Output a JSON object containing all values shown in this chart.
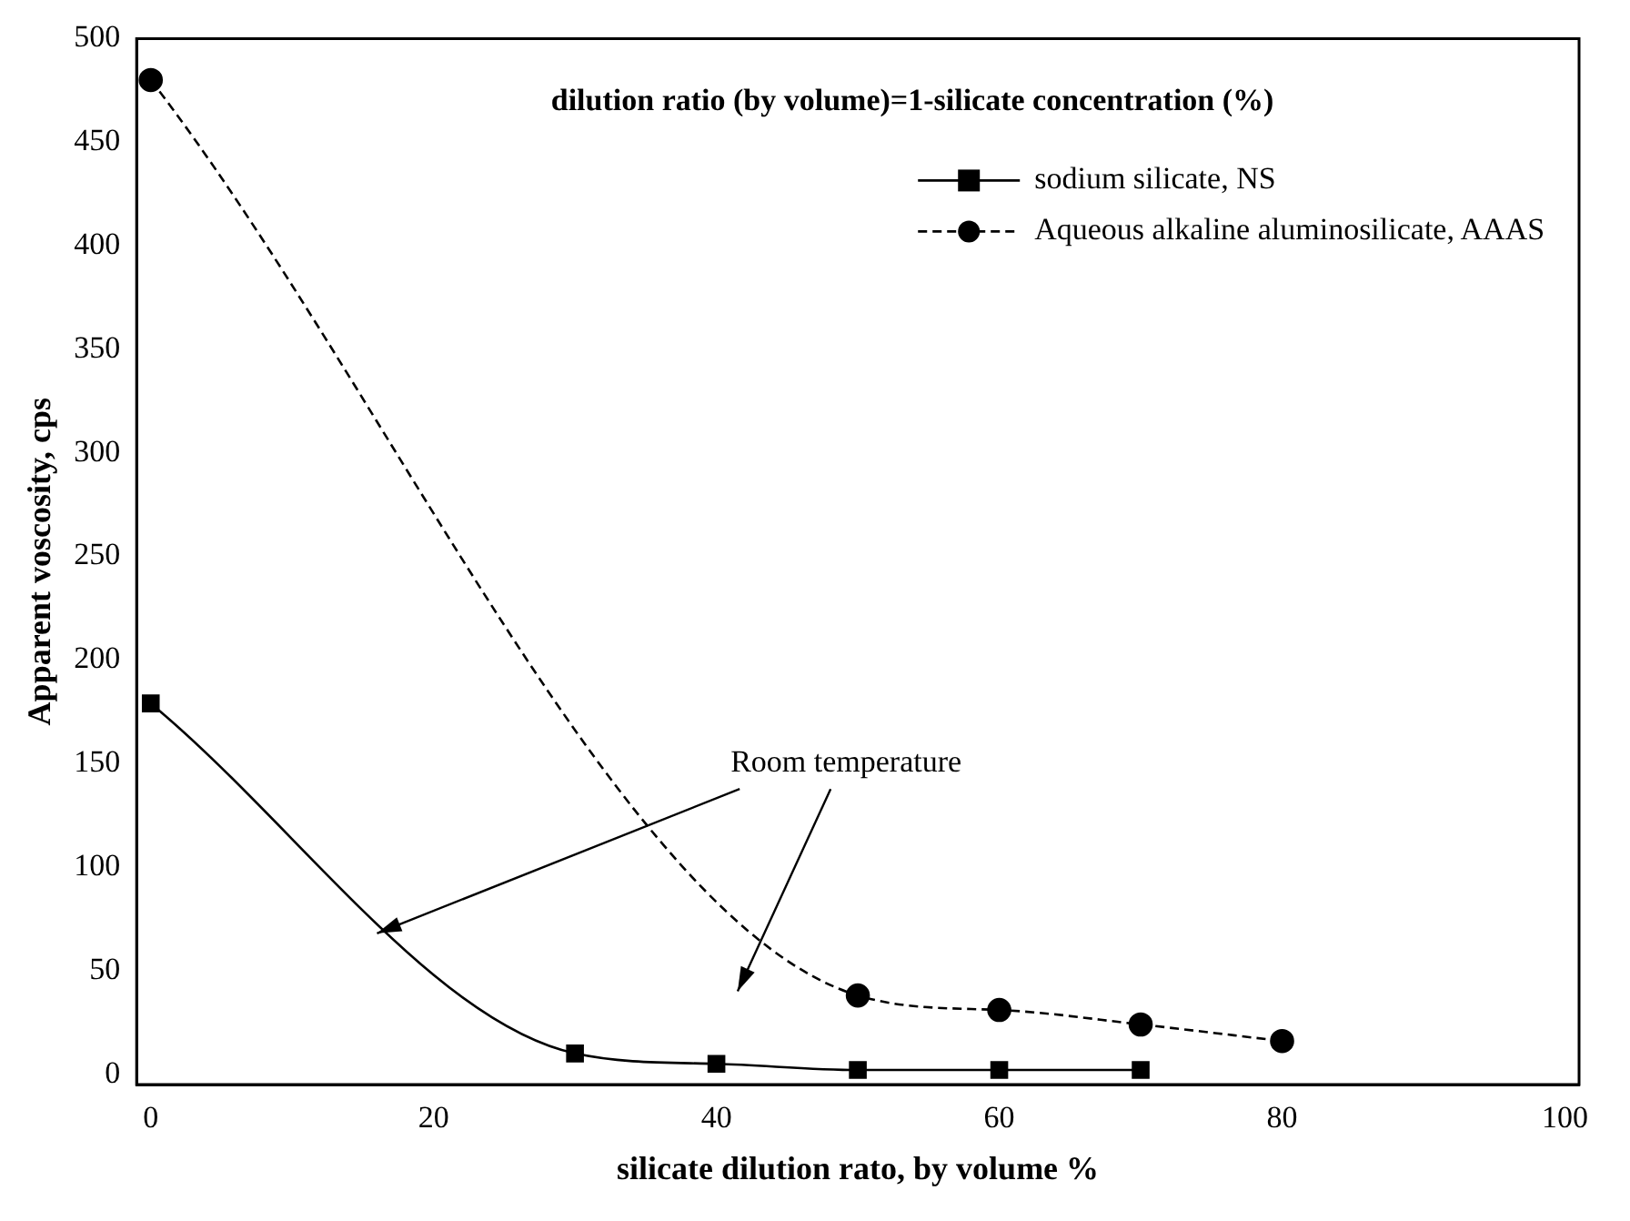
{
  "chart_data": {
    "type": "line",
    "xlabel": "silicate dilution rato, by volume %",
    "ylabel": "Apparent voscosity, cps",
    "annotations": [
      "dilution ratio (by volume)=1-silicate concentration (%)",
      {
        "text": "Room temperature",
        "x": 16,
        "y": 68
      }
    ],
    "xlim": [
      -1,
      101
    ],
    "xticks": [
      0,
      20,
      40,
      60,
      80,
      100
    ],
    "ylim": [
      -5,
      500
    ],
    "yticks": [
      0,
      50,
      100,
      150,
      200,
      250,
      300,
      350,
      400,
      450,
      500
    ],
    "grid": false,
    "legend": "top right",
    "series": [
      {
        "name": "sodium silicate, NS",
        "color": "#000000",
        "marker": "square",
        "line_style": "solid",
        "x": [
          0,
          30,
          40,
          50,
          60,
          70
        ],
        "values": [
          179,
          10,
          5,
          2,
          2,
          2
        ]
      },
      {
        "name": "Aqueous alkaline aluminosilicate, AAAS",
        "color": "#000000",
        "marker": "circle",
        "line_style": "dashed",
        "x": [
          0,
          50,
          60,
          70,
          80
        ],
        "values": [
          480,
          38,
          31,
          24,
          16
        ]
      }
    ]
  }
}
